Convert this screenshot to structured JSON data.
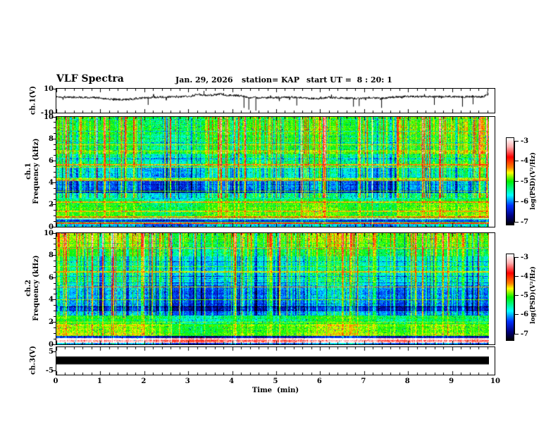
{
  "header": {
    "title": "VLF Spectra",
    "date": "Jan. 29, 2026",
    "station": "station= KAP",
    "start_ut": "start UT =  8 : 20: 1"
  },
  "axes": {
    "x": {
      "label": "Time  (min)",
      "tick_labels": [
        "0",
        "1",
        "2",
        "3",
        "4",
        "5",
        "6",
        "7",
        "8",
        "9",
        "10"
      ],
      "min": 0,
      "max": 10,
      "minor_step": 0.2
    },
    "wave_y": {
      "label": "ch.1(V)",
      "tick_labels": [
        "10",
        "-10"
      ],
      "tick_values": [
        10,
        -10
      ],
      "min": -10,
      "max": 10
    },
    "spec1_y": {
      "label_line1": "ch.1",
      "label_line2": "Frequency (kHz)",
      "tick_labels": [
        "10",
        "8",
        "6",
        "4",
        "2",
        "0"
      ],
      "tick_values": [
        10,
        8,
        6,
        4,
        2,
        0
      ],
      "minor_step": 0.5
    },
    "spec2_y": {
      "label_line1": "ch.2",
      "label_line2": "Frequency (kHz)",
      "tick_labels": [
        "10",
        "8",
        "6",
        "4",
        "2",
        "0"
      ],
      "tick_values": [
        10,
        8,
        6,
        4,
        2,
        0
      ],
      "minor_step": 0.5
    },
    "ch3_y": {
      "label": "ch.3(V)",
      "tick_labels": [
        "5",
        "-5"
      ],
      "tick_values": [
        5,
        -5
      ],
      "min": -7.2,
      "max": 7.2
    }
  },
  "colorbars": [
    {
      "label": "log(PSD)(V²/Hz)",
      "tick_labels": [
        "-3",
        "-4",
        "-5",
        "-6",
        "-7"
      ],
      "gradient_stops": [
        [
          "#ffffff",
          0
        ],
        [
          "#ffb0b0",
          10
        ],
        [
          "#ff0000",
          22
        ],
        [
          "#ff8000",
          34
        ],
        [
          "#ffff00",
          40
        ],
        [
          "#00ee00",
          50
        ],
        [
          "#00ffff",
          66
        ],
        [
          "#0030ff",
          78
        ],
        [
          "#000080",
          90
        ],
        [
          "#000000",
          100
        ]
      ]
    },
    {
      "label": "log(PSD)(V²/Hz)",
      "tick_labels": [
        "-3",
        "-4",
        "-5",
        "-6",
        "-7"
      ],
      "gradient_stops": [
        [
          "#ffffff",
          0
        ],
        [
          "#ffb0b0",
          10
        ],
        [
          "#ff0000",
          22
        ],
        [
          "#ff8000",
          34
        ],
        [
          "#ffff00",
          40
        ],
        [
          "#00ee00",
          50
        ],
        [
          "#00ffff",
          66
        ],
        [
          "#0030ff",
          78
        ],
        [
          "#000080",
          90
        ],
        [
          "#000000",
          100
        ]
      ]
    }
  ],
  "chart_data": {
    "type": "heatmap",
    "title": "VLF Spectra",
    "x_unit": "min",
    "x_range": [
      0,
      10
    ],
    "data_end_min": 9.84,
    "value_label": "log(PSD)(V²/Hz)",
    "value_range": [
      -7,
      -3
    ],
    "colormap_stops": [
      [
        0,
        "#000000"
      ],
      [
        0.1,
        "#000080"
      ],
      [
        0.22,
        "#0030ff"
      ],
      [
        0.34,
        "#00ffff"
      ],
      [
        0.48,
        "#00ee00"
      ],
      [
        0.54,
        "#66ff00"
      ],
      [
        0.6,
        "#ffff00"
      ],
      [
        0.66,
        "#ff8000"
      ],
      [
        0.78,
        "#ff0000"
      ],
      [
        0.9,
        "#ffb0b0"
      ],
      [
        1,
        "#ffffff"
      ]
    ],
    "panels": [
      {
        "id": "ch1_waveform",
        "type": "line",
        "y_label": "ch.1(V)",
        "y_range": [
          -10,
          10
        ],
        "seed": 1337,
        "noise_amp": 0.9,
        "envelope": [
          [
            0,
            3.2
          ],
          [
            0.3,
            3.0
          ],
          [
            0.8,
            2.8
          ],
          [
            1.3,
            1.2
          ],
          [
            1.6,
            0.9
          ],
          [
            1.9,
            2.2
          ],
          [
            2.3,
            3.0
          ],
          [
            2.7,
            3.2
          ],
          [
            3.0,
            3.4
          ],
          [
            3.2,
            5.2
          ],
          [
            3.45,
            4.3
          ],
          [
            3.7,
            5.6
          ],
          [
            3.9,
            4.6
          ],
          [
            4.15,
            4.3
          ],
          [
            4.4,
            2.7
          ],
          [
            4.7,
            2.4
          ],
          [
            5.0,
            2.7
          ],
          [
            5.3,
            3.0
          ],
          [
            5.6,
            2.6
          ],
          [
            5.9,
            1.7
          ],
          [
            6.2,
            2.8
          ],
          [
            6.5,
            2.3
          ],
          [
            6.8,
            1.8
          ],
          [
            7.1,
            2.6
          ],
          [
            7.4,
            2.1
          ],
          [
            7.7,
            3.2
          ],
          [
            8.0,
            3.6
          ],
          [
            8.3,
            3.4
          ],
          [
            8.6,
            3.2
          ],
          [
            8.9,
            3.6
          ],
          [
            9.2,
            3.2
          ],
          [
            9.5,
            3.6
          ],
          [
            9.7,
            3.4
          ],
          [
            9.84,
            5.6
          ]
        ],
        "spikes": [
          [
            2.08,
            -3.5
          ],
          [
            3.35,
            8.2
          ],
          [
            4.26,
            -6.0
          ],
          [
            4.37,
            -7.5
          ],
          [
            4.53,
            -8.3
          ],
          [
            5.46,
            -4.0
          ],
          [
            6.75,
            -5.0
          ],
          [
            6.88,
            -4.5
          ],
          [
            7.39,
            -6.0
          ],
          [
            8.59,
            -3.5
          ],
          [
            9.23,
            -5.0
          ],
          [
            9.47,
            -3.0
          ],
          [
            9.8,
            8.0
          ]
        ]
      },
      {
        "id": "ch1_spectrogram",
        "type": "heatmap",
        "y_label": "ch.1 Frequency (kHz)",
        "y_range": [
          0,
          10
        ],
        "seed": 99101,
        "bands": [
          [
            10,
            8.4,
            0.5
          ],
          [
            8.4,
            7.0,
            0.47
          ],
          [
            7.0,
            6.6,
            0.52
          ],
          [
            6.6,
            5.8,
            0.42
          ],
          [
            5.8,
            5.4,
            0.44
          ],
          [
            5.4,
            4.9,
            0.36
          ],
          [
            4.9,
            4.5,
            0.33
          ],
          [
            4.5,
            4.2,
            0.45
          ],
          [
            4.2,
            3.3,
            0.26
          ],
          [
            3.3,
            3.05,
            0.17
          ],
          [
            3.05,
            2.5,
            0.4
          ],
          [
            2.5,
            2.2,
            0.46
          ],
          [
            2.2,
            1.5,
            0.5
          ],
          [
            1.5,
            1.0,
            0.52
          ],
          [
            1.0,
            0.75,
            0.5
          ],
          [
            0.75,
            0.6,
            0.35
          ],
          [
            0.6,
            0.4,
            0.22
          ],
          [
            0.4,
            0.2,
            0.45
          ],
          [
            0.2,
            0,
            0.32
          ]
        ],
        "lines": [
          [
            7.5,
            0.63,
            1
          ],
          [
            6.9,
            0.6,
            1
          ],
          [
            5.65,
            0.66,
            2
          ],
          [
            5.45,
            0.6,
            1
          ],
          [
            4.35,
            0.58,
            2
          ],
          [
            4.2,
            0.68,
            1
          ],
          [
            3.25,
            0.55,
            1
          ],
          [
            2.25,
            0.64,
            2
          ],
          [
            1.4,
            0.62,
            2
          ],
          [
            0.9,
            0.68,
            2
          ],
          [
            0.7,
            0.93,
            1
          ],
          [
            0.5,
            0.2,
            2
          ],
          [
            0.3,
            0.72,
            2
          ]
        ]
      },
      {
        "id": "ch2_spectrogram",
        "type": "heatmap",
        "y_label": "ch.2 Frequency (kHz)",
        "y_range": [
          0,
          10
        ],
        "seed": 55202,
        "bands": [
          [
            10,
            8.6,
            0.54
          ],
          [
            8.6,
            7.9,
            0.46
          ],
          [
            7.9,
            6.6,
            0.38
          ],
          [
            6.6,
            5.3,
            0.37
          ],
          [
            5.3,
            4.2,
            0.28
          ],
          [
            4.2,
            3.4,
            0.26
          ],
          [
            3.4,
            2.95,
            0.16
          ],
          [
            2.95,
            2.6,
            0.3
          ],
          [
            2.6,
            1.8,
            0.45
          ],
          [
            1.8,
            0.75,
            0.54
          ],
          [
            0.75,
            0.55,
            0.18
          ],
          [
            0.55,
            0.38,
            0.97
          ],
          [
            0.38,
            0.22,
            0.85
          ],
          [
            0.22,
            0.1,
            0.95
          ],
          [
            0.1,
            0,
            0.25
          ]
        ],
        "lines": [
          [
            8.65,
            0.62,
            1
          ],
          [
            7.0,
            0.5,
            1
          ],
          [
            6.5,
            0.62,
            2
          ],
          [
            5.15,
            0.6,
            1
          ],
          [
            4.0,
            0.55,
            1
          ],
          [
            2.0,
            0.55,
            1
          ]
        ]
      },
      {
        "id": "ch3_waveform",
        "type": "line",
        "y_label": "ch.3(V)",
        "y_range": [
          -5,
          5
        ],
        "bar_top_v": 2.3,
        "bar_bottom_v": -1.8,
        "description": "saturated constant-amplitude black band from 0 to 9.84 min"
      }
    ]
  }
}
